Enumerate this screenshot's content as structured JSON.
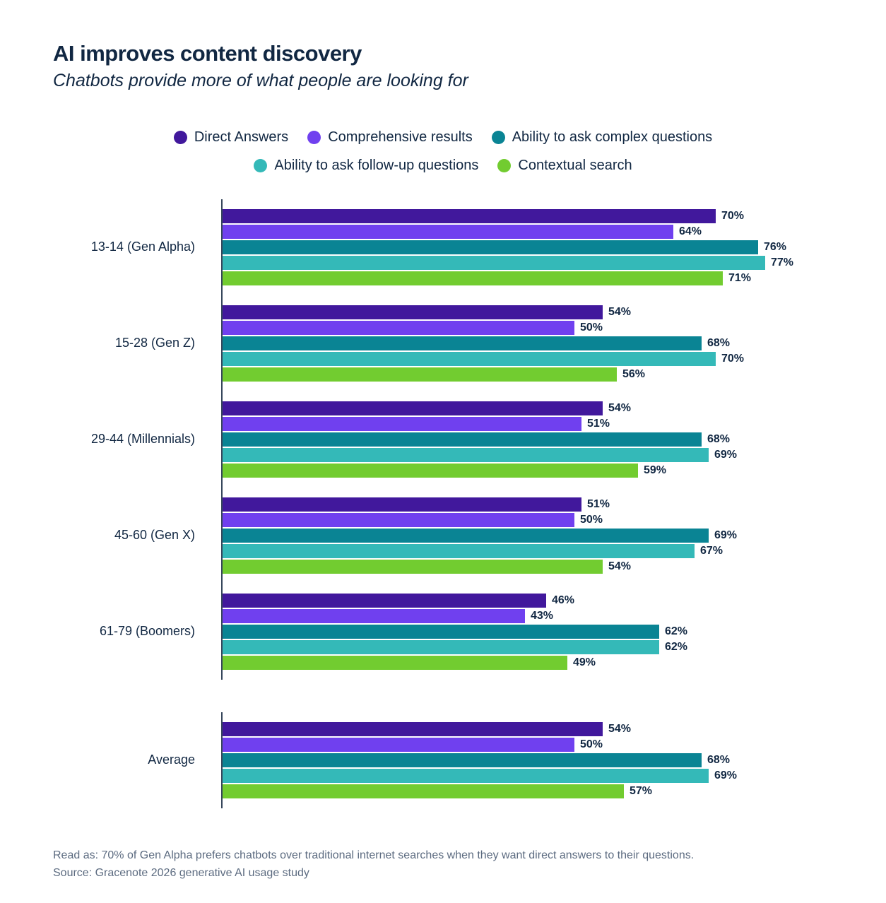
{
  "header": {
    "title": "AI improves content discovery",
    "subtitle": "Chatbots provide more of what people are looking for"
  },
  "chart_data": {
    "type": "bar",
    "orientation": "horizontal",
    "value_unit": "%",
    "xlim": [
      0,
      100
    ],
    "grid": false,
    "legend_position": "top-center",
    "bar_value_labels": true,
    "axis_color": "#37475C",
    "text_color": "#112742",
    "categories": [
      "13-14 (Gen Alpha)",
      "15-28 (Gen Z)",
      "29-44 (Millennials)",
      "45-60 (Gen X)",
      "61-79 (Boomers)",
      "Average"
    ],
    "series": [
      {
        "name": "Direct Answers",
        "color": "#41189C",
        "values": [
          70,
          54,
          54,
          51,
          46,
          54
        ]
      },
      {
        "name": "Comprehensive results",
        "color": "#7040EF",
        "values": [
          64,
          50,
          51,
          50,
          43,
          50
        ]
      },
      {
        "name": "Ability to ask complex questions",
        "color": "#0A8494",
        "values": [
          76,
          68,
          68,
          69,
          62,
          68
        ]
      },
      {
        "name": "Ability to ask follow-up questions",
        "color": "#34B9B8",
        "values": [
          77,
          70,
          69,
          67,
          62,
          69
        ]
      },
      {
        "name": "Contextual search",
        "color": "#72CC30",
        "values": [
          71,
          56,
          59,
          54,
          49,
          57
        ]
      }
    ],
    "legend_rows": [
      [
        0,
        1,
        2
      ],
      [
        3,
        4
      ]
    ],
    "sections": [
      [
        0,
        1,
        2,
        3,
        4
      ],
      [
        5
      ]
    ]
  },
  "footer": {
    "read_as": "Read as: 70% of Gen Alpha prefers chatbots over traditional internet searches when they want direct answers to their questions.",
    "source": "Source: Gracenote 2026 generative AI usage study"
  }
}
